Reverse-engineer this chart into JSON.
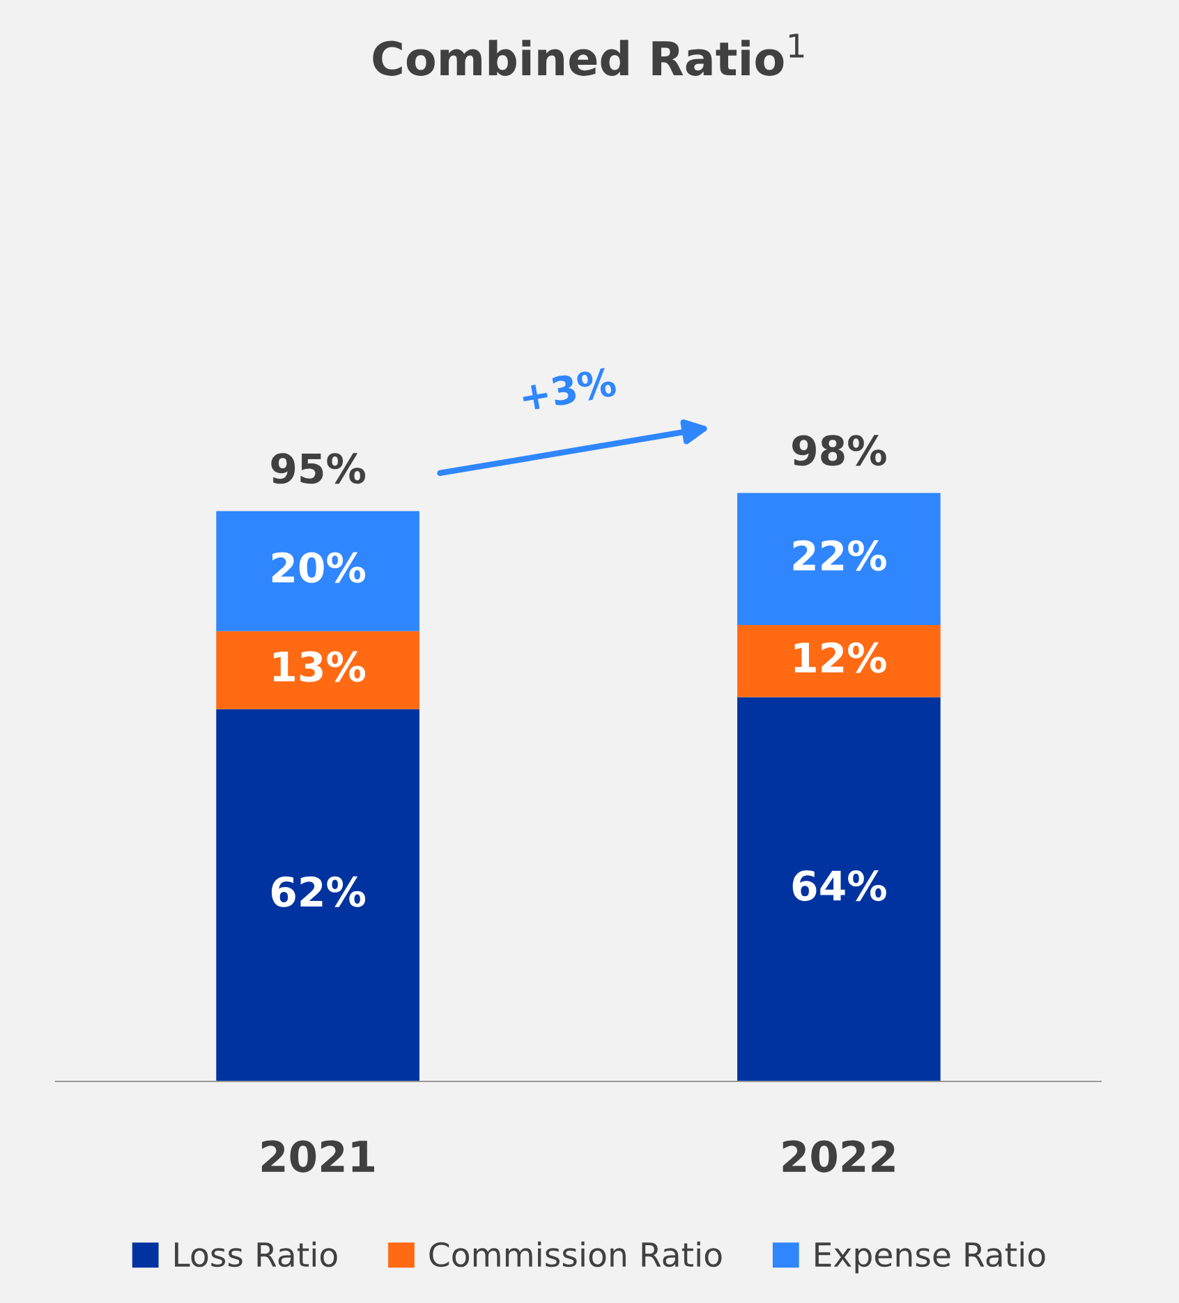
{
  "chart_data": {
    "type": "bar",
    "title": "Combined Ratio$^{1}$",
    "stacked": true,
    "categories": [
      "2021",
      "2022"
    ],
    "series": [
      {
        "name": "Loss Ratio",
        "color": "#0033a0",
        "values": [
          62,
          64
        ],
        "value_labels": [
          "62%",
          "64%"
        ]
      },
      {
        "name": "Commission Ratio",
        "color": "#ff6a13",
        "values": [
          13,
          12
        ],
        "value_labels": [
          "13%",
          "12%"
        ]
      },
      {
        "name": "Expense Ratio",
        "color": "#2f86ff",
        "values": [
          20,
          22
        ],
        "value_labels": [
          "20%",
          "22%"
        ]
      }
    ],
    "totals": [
      "95%",
      "98%"
    ],
    "annotations": [
      "+3%"
    ],
    "tick_labels": "x",
    "grid": false,
    "legend": "bottom"
  }
}
